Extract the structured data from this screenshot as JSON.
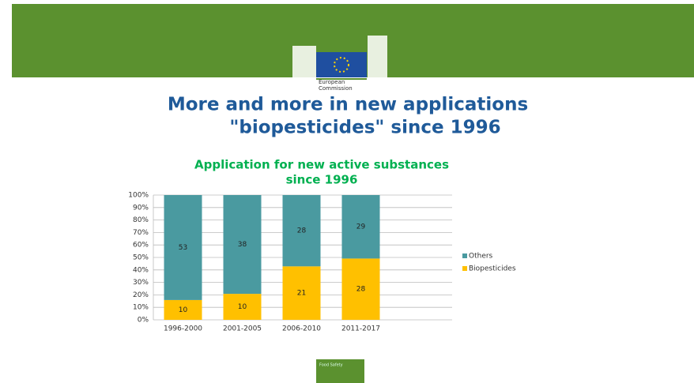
{
  "header": {
    "logo_text": [
      "European",
      "Commission"
    ]
  },
  "slide_title": [
    "More and more in new applications",
    "\"biopesticides\" since 1996"
  ],
  "footer": "Food Safety",
  "chart_data": {
    "type": "bar",
    "stack": "percent",
    "title": [
      "Application for new active substances",
      "since 1996"
    ],
    "categories": [
      "1996-2000",
      "2001-2005",
      "2006-2010",
      "2011-2017"
    ],
    "series": [
      {
        "name": "Biopesticides",
        "color": "#ffc000",
        "values": [
          10,
          10,
          21,
          28
        ]
      },
      {
        "name": "Others",
        "color": "#4a9aa0",
        "values": [
          53,
          38,
          28,
          29
        ]
      }
    ],
    "ylim": [
      0,
      100
    ],
    "yticks": [
      {
        "value": 0,
        "label": "0%"
      },
      {
        "value": 10,
        "label": "10%"
      },
      {
        "value": 20,
        "label": "20%"
      },
      {
        "value": 30,
        "label": "30%"
      },
      {
        "value": 40,
        "label": "40%"
      },
      {
        "value": 50,
        "label": "50%"
      },
      {
        "value": 60,
        "label": "60%"
      },
      {
        "value": 70,
        "label": "70%"
      },
      {
        "value": 80,
        "label": "80%"
      },
      {
        "value": 90,
        "label": "90%"
      },
      {
        "value": 100,
        "label": "100%"
      }
    ],
    "grid": true,
    "legend": "right"
  }
}
